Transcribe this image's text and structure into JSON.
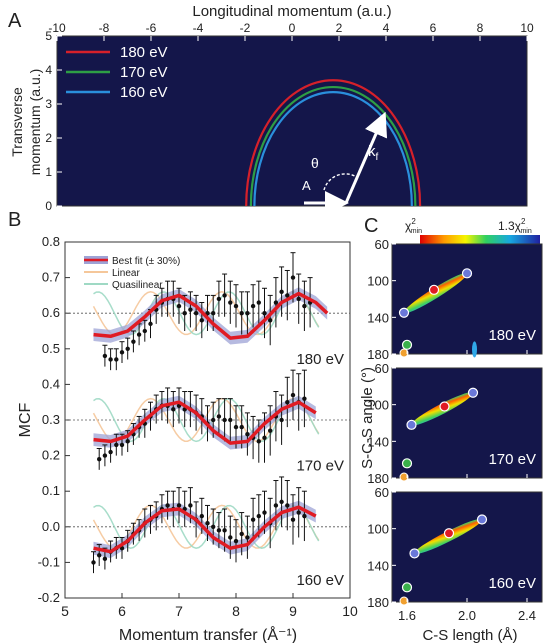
{
  "panel_labels": {
    "a": "A",
    "b": "B",
    "c": "C"
  },
  "colors": {
    "e180": "#d6202a",
    "e170": "#2e9e45",
    "e160": "#2a8fdc",
    "fit": "#e01b24",
    "band": "#9ea3d6",
    "linear": "#f5c79a",
    "quasilinear": "#9fd9c4",
    "data": "#111111",
    "dark_bg": "#14164a"
  },
  "chart_data": [
    {
      "id": "A",
      "type": "heatmap",
      "title": "Longitudinal momentum (a.u.)",
      "ylabel": "Transverse momentum (a.u.)",
      "xlim": [
        -10,
        10
      ],
      "ylim": [
        0,
        5
      ],
      "x_ticks": [
        "-10",
        "-8",
        "-6",
        "-4",
        "-2",
        "0",
        "2",
        "4",
        "6",
        "8",
        "10"
      ],
      "y_ticks": [
        "0",
        "1",
        "2",
        "3",
        "4",
        "5"
      ],
      "legend": [
        "180 eV",
        "170 eV",
        "160 eV"
      ],
      "legend_position": "top-left",
      "semicircles": [
        {
          "name": "180 eV",
          "center": 1.75,
          "radius": 3.7
        },
        {
          "name": "170 eV",
          "center": 1.75,
          "radius": 3.5
        },
        {
          "name": "160 eV",
          "center": 1.75,
          "radius": 3.35
        }
      ],
      "annotations": {
        "k": "k",
        "k_sub": "f",
        "theta": "θ",
        "a": "A"
      }
    },
    {
      "id": "B",
      "type": "line",
      "xlabel": "Momentum transfer (Å⁻¹)",
      "ylabel": "MCF",
      "xlim": [
        5,
        10
      ],
      "ylim": [
        -0.2,
        0.8
      ],
      "x_ticks": [
        "5",
        "6",
        "7",
        "8",
        "9",
        "10"
      ],
      "y_ticks": [
        "-0.2",
        "-0.1",
        "0.0",
        "0.1",
        "0.2",
        "0.3",
        "0.4",
        "0.5",
        "0.6",
        "0.7",
        "0.8"
      ],
      "legend": [
        "Best fit (± 30%)",
        "Linear",
        "Quasilinear"
      ],
      "legend_position": "top-left",
      "reference_lines": [
        0.6,
        0.3,
        0.0
      ],
      "series_labels": [
        "180 eV",
        "170 eV",
        "160 eV"
      ],
      "fit_curves": [
        {
          "name": "180 eV",
          "x": [
            5.5,
            5.8,
            6.1,
            6.4,
            6.7,
            7.0,
            7.3,
            7.6,
            7.9,
            8.2,
            8.5,
            8.8,
            9.1,
            9.4,
            9.6
          ],
          "y": [
            0.54,
            0.535,
            0.55,
            0.59,
            0.635,
            0.65,
            0.62,
            0.57,
            0.53,
            0.535,
            0.58,
            0.63,
            0.655,
            0.63,
            0.6
          ]
        },
        {
          "name": "170 eV",
          "x": [
            5.5,
            5.8,
            6.1,
            6.4,
            6.7,
            7.0,
            7.3,
            7.6,
            7.9,
            8.2,
            8.5,
            8.8,
            9.1,
            9.4
          ],
          "y": [
            0.245,
            0.24,
            0.255,
            0.3,
            0.34,
            0.35,
            0.32,
            0.27,
            0.235,
            0.24,
            0.29,
            0.33,
            0.35,
            0.32
          ]
        },
        {
          "name": "160 eV",
          "x": [
            5.5,
            5.8,
            6.1,
            6.4,
            6.7,
            7.0,
            7.3,
            7.6,
            7.9,
            8.2,
            8.5,
            8.8,
            9.1,
            9.4
          ],
          "y": [
            -0.06,
            -0.07,
            -0.04,
            0.01,
            0.045,
            0.05,
            0.02,
            -0.03,
            -0.06,
            -0.05,
            0.0,
            0.04,
            0.055,
            0.03
          ]
        }
      ],
      "data_points": [
        {
          "name": "180 eV",
          "x": [
            5.7,
            5.8,
            5.9,
            6.0,
            6.1,
            6.2,
            6.3,
            6.4,
            6.5,
            6.6,
            6.7,
            6.8,
            6.9,
            7.0,
            7.1,
            7.2,
            7.3,
            7.4,
            7.5,
            7.6,
            7.7,
            7.8,
            7.9,
            8.0,
            8.1,
            8.2,
            8.3,
            8.4,
            8.5,
            8.6,
            8.7,
            8.8,
            8.9,
            9.0,
            9.1,
            9.2,
            9.3
          ],
          "y": [
            0.48,
            0.47,
            0.47,
            0.49,
            0.5,
            0.52,
            0.54,
            0.55,
            0.57,
            0.61,
            0.63,
            0.64,
            0.64,
            0.62,
            0.6,
            0.61,
            0.6,
            0.58,
            0.6,
            0.6,
            0.64,
            0.65,
            0.63,
            0.62,
            0.6,
            0.6,
            0.62,
            0.63,
            0.6,
            0.58,
            0.63,
            0.66,
            0.65,
            0.7,
            0.64,
            0.62,
            0.63
          ],
          "err": [
            0.03,
            0.03,
            0.03,
            0.03,
            0.03,
            0.03,
            0.03,
            0.03,
            0.04,
            0.04,
            0.04,
            0.05,
            0.05,
            0.05,
            0.05,
            0.05,
            0.05,
            0.05,
            0.05,
            0.05,
            0.05,
            0.06,
            0.06,
            0.06,
            0.06,
            0.06,
            0.06,
            0.06,
            0.07,
            0.07,
            0.07,
            0.07,
            0.07,
            0.07,
            0.07,
            0.07,
            0.07
          ]
        },
        {
          "name": "170 eV",
          "x": [
            5.6,
            5.7,
            5.8,
            5.9,
            6.0,
            6.1,
            6.2,
            6.3,
            6.4,
            6.5,
            6.6,
            6.7,
            6.8,
            6.9,
            7.0,
            7.1,
            7.2,
            7.3,
            7.4,
            7.5,
            7.6,
            7.7,
            7.8,
            7.9,
            8.0,
            8.1,
            8.2,
            8.3,
            8.4,
            8.5,
            8.6,
            8.7,
            8.8,
            8.9,
            9.0,
            9.1,
            9.2
          ],
          "y": [
            0.19,
            0.2,
            0.21,
            0.23,
            0.23,
            0.24,
            0.26,
            0.28,
            0.29,
            0.31,
            0.33,
            0.34,
            0.34,
            0.33,
            0.34,
            0.33,
            0.33,
            0.32,
            0.31,
            0.29,
            0.3,
            0.31,
            0.3,
            0.3,
            0.28,
            0.28,
            0.26,
            0.25,
            0.24,
            0.25,
            0.27,
            0.31,
            0.3,
            0.35,
            0.37,
            0.35,
            0.36
          ],
          "err": [
            0.03,
            0.03,
            0.03,
            0.03,
            0.03,
            0.03,
            0.03,
            0.03,
            0.04,
            0.04,
            0.04,
            0.04,
            0.05,
            0.05,
            0.05,
            0.05,
            0.05,
            0.05,
            0.05,
            0.05,
            0.05,
            0.05,
            0.06,
            0.06,
            0.06,
            0.06,
            0.06,
            0.06,
            0.06,
            0.07,
            0.07,
            0.07,
            0.07,
            0.07,
            0.07,
            0.08,
            0.08
          ]
        },
        {
          "name": "160 eV",
          "x": [
            5.5,
            5.6,
            5.7,
            5.8,
            5.9,
            6.0,
            6.1,
            6.2,
            6.3,
            6.4,
            6.5,
            6.6,
            6.7,
            6.8,
            6.9,
            7.0,
            7.1,
            7.2,
            7.3,
            7.4,
            7.5,
            7.6,
            7.7,
            7.8,
            7.9,
            8.0,
            8.1,
            8.2,
            8.3,
            8.4,
            8.5,
            8.6,
            8.7,
            8.8,
            8.9,
            9.0,
            9.1,
            9.2
          ],
          "y": [
            -0.1,
            -0.08,
            -0.09,
            -0.07,
            -0.06,
            -0.06,
            -0.04,
            -0.02,
            -0.01,
            0.01,
            0.02,
            0.03,
            0.05,
            0.06,
            0.05,
            0.06,
            0.05,
            0.06,
            0.02,
            0.03,
            0.01,
            0.0,
            -0.01,
            -0.01,
            -0.03,
            -0.04,
            -0.02,
            -0.03,
            0.02,
            0.03,
            0.04,
            0.01,
            0.06,
            0.07,
            0.06,
            0.02,
            0.04,
            0.03
          ],
          "err": [
            0.03,
            0.03,
            0.03,
            0.03,
            0.03,
            0.03,
            0.03,
            0.03,
            0.03,
            0.04,
            0.04,
            0.04,
            0.04,
            0.04,
            0.05,
            0.05,
            0.05,
            0.05,
            0.05,
            0.05,
            0.05,
            0.05,
            0.05,
            0.06,
            0.06,
            0.06,
            0.06,
            0.06,
            0.06,
            0.06,
            0.06,
            0.07,
            0.07,
            0.07,
            0.07,
            0.07,
            0.07,
            0.07
          ]
        }
      ]
    },
    {
      "id": "C",
      "type": "heatmap",
      "xlabel": "C-S length (Å)",
      "ylabel": "S-C-S angle (°)",
      "xlim": [
        1.5,
        2.5
      ],
      "ylim": [
        60,
        180
      ],
      "x_ticks": [
        "1.6",
        "2.0",
        "2.4"
      ],
      "y_ticks": [
        "60",
        "100",
        "140",
        "180"
      ],
      "colorbar_min": "χ",
      "colorbar_min_sup": "2",
      "colorbar_min_sub": "min",
      "colorbar_max": "1.3χ",
      "colorbar_max_sup": "2",
      "colorbar_max_sub": "min",
      "panels": [
        {
          "name": "180 eV",
          "best": [
            1.78,
            110
          ],
          "ends": [
            [
              1.58,
              135
            ],
            [
              2.0,
              92
            ]
          ],
          "green": [
            1.6,
            170
          ],
          "orange": [
            1.58,
            180
          ]
        },
        {
          "name": "170 eV",
          "best": [
            1.85,
            102
          ],
          "ends": [
            [
              1.63,
              122
            ],
            [
              2.04,
              87
            ]
          ],
          "green": [
            1.6,
            164
          ],
          "orange": [
            1.58,
            180
          ]
        },
        {
          "name": "160 eV",
          "best": [
            1.88,
            105
          ],
          "ends": [
            [
              1.65,
              127
            ],
            [
              2.1,
              90
            ]
          ],
          "green": [
            1.6,
            164
          ],
          "orange": [
            1.58,
            180
          ]
        }
      ]
    }
  ]
}
